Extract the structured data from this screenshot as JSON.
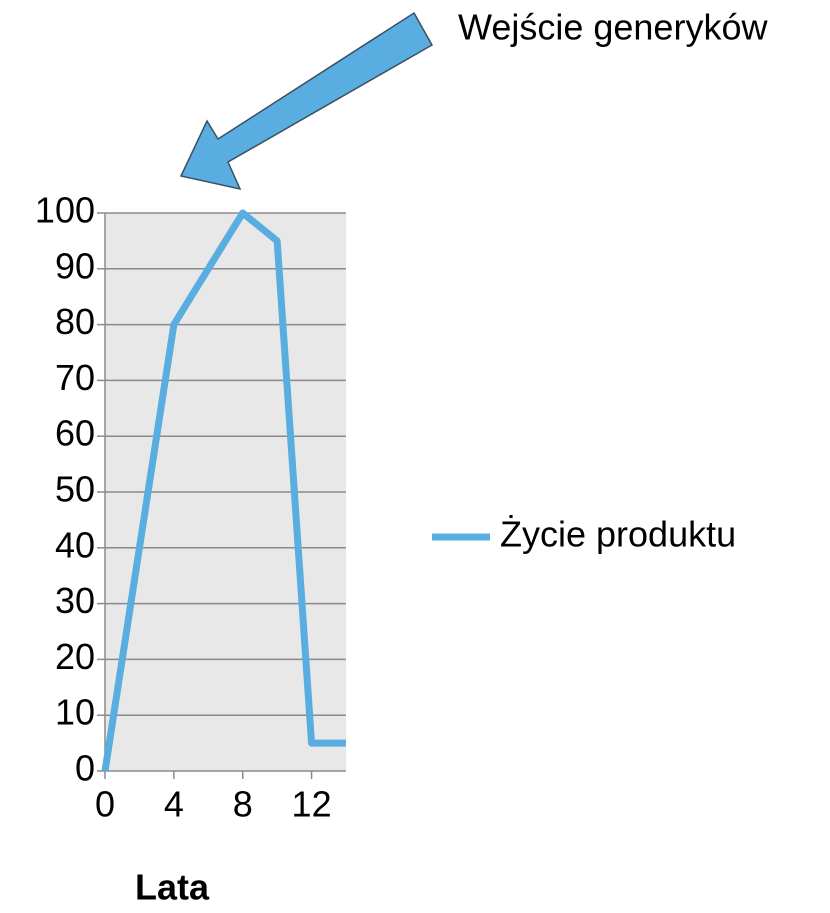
{
  "chart_data": {
    "type": "line",
    "annotation": "Wejście generyków",
    "x_label": "Lata",
    "x": [
      0,
      4,
      8,
      10,
      12,
      14
    ],
    "series": [
      {
        "name": "Życie produktu",
        "color": "#5aade0",
        "values": [
          0,
          80,
          100,
          95,
          5,
          5
        ]
      }
    ],
    "xlim": [
      0,
      14
    ],
    "xticks": [
      0,
      4,
      8,
      12
    ],
    "ylim": [
      0,
      100
    ],
    "yticks": [
      0,
      10,
      20,
      30,
      40,
      50,
      60,
      70,
      80,
      90,
      100
    ],
    "grid": true,
    "legend": "right"
  }
}
